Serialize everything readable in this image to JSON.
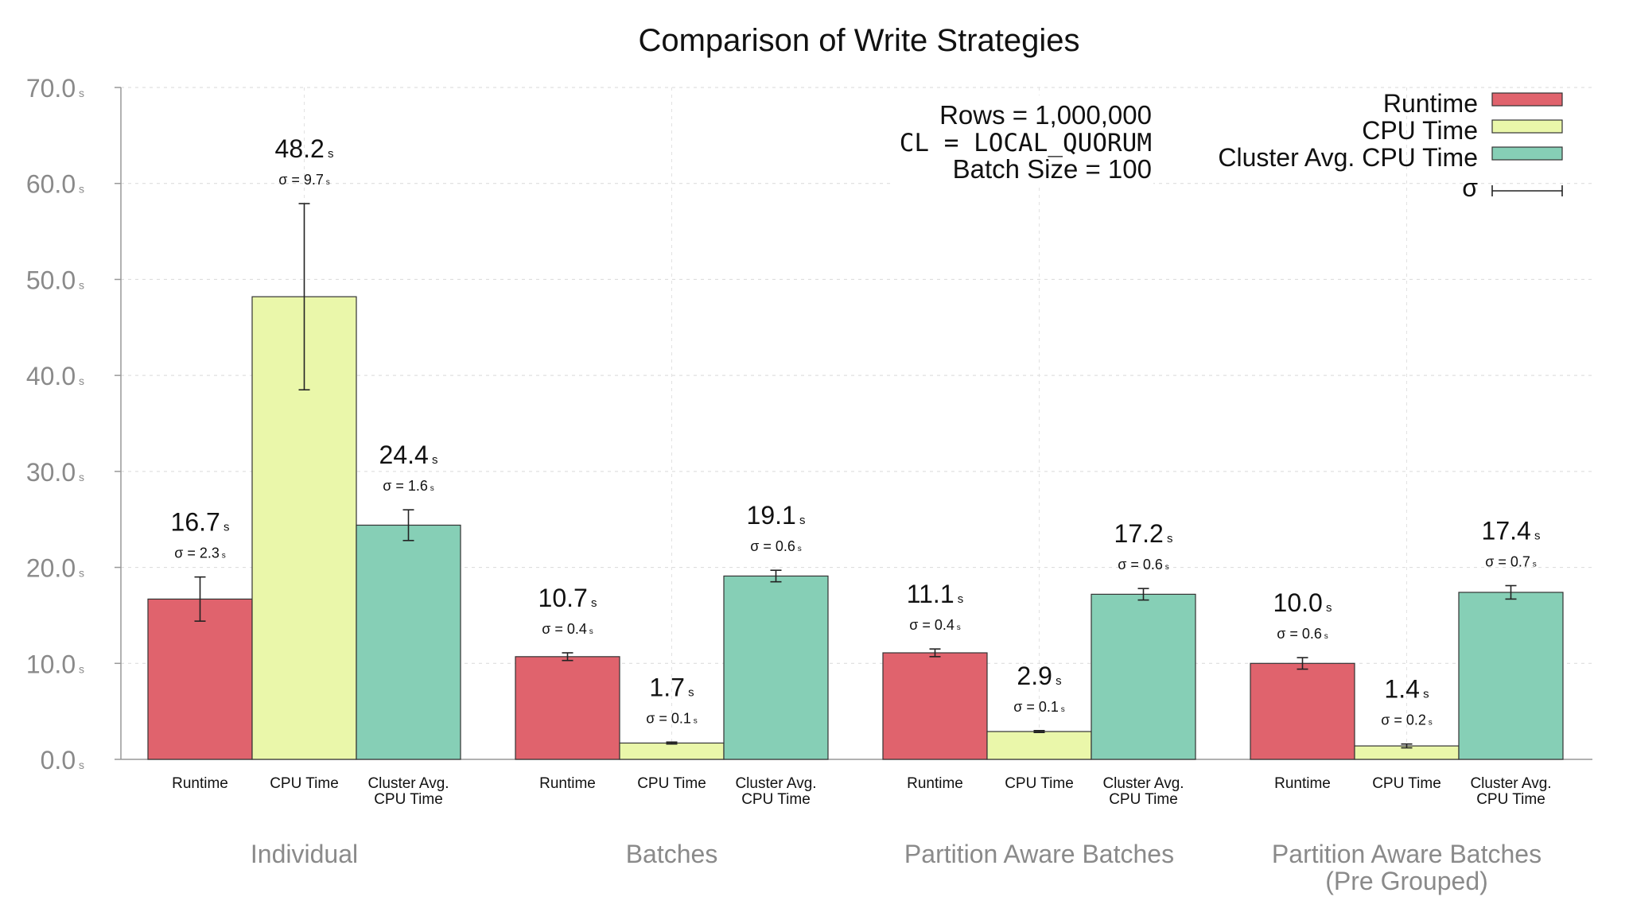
{
  "chart_data": {
    "type": "bar",
    "title": "Comparison of Write Strategies",
    "xlabel": "",
    "ylabel": "",
    "ylim": [
      0,
      70
    ],
    "yticks": [
      0,
      10,
      20,
      30,
      40,
      50,
      60,
      70
    ],
    "ytick_labels": [
      "0.0",
      "10.0",
      "20.0",
      "30.0",
      "40.0",
      "50.0",
      "60.0",
      "70.0"
    ],
    "y_unit": "s",
    "grid": true,
    "bar_labels": [
      "Runtime",
      "CPU Time",
      "Cluster Avg. CPU Time"
    ],
    "bar_label_lines": [
      [
        "Runtime"
      ],
      [
        "CPU Time"
      ],
      [
        "Cluster Avg.",
        "CPU Time"
      ]
    ],
    "categories": [
      {
        "label": [
          "Individual"
        ]
      },
      {
        "label": [
          "Batches"
        ]
      },
      {
        "label": [
          "Partition Aware Batches"
        ]
      },
      {
        "label": [
          "Partition Aware Batches",
          "(Pre Grouped)"
        ]
      }
    ],
    "series": [
      {
        "name": "Runtime",
        "color": "#e0636d",
        "values": [
          16.7,
          10.7,
          11.1,
          10.0
        ],
        "value_labels": [
          "16.7",
          "10.7",
          "11.1",
          "10.0"
        ],
        "sigma": [
          2.3,
          0.4,
          0.4,
          0.6
        ],
        "sigma_labels": [
          "2.3",
          "0.4",
          "0.4",
          "0.6"
        ]
      },
      {
        "name": "CPU Time",
        "color": "#eaf7aa",
        "values": [
          48.2,
          1.7,
          2.9,
          1.4
        ],
        "value_labels": [
          "48.2",
          "1.7",
          "2.9",
          "1.4"
        ],
        "sigma": [
          9.7,
          0.1,
          0.1,
          0.2
        ],
        "sigma_labels": [
          "9.7",
          "0.1",
          "0.1",
          "0.2"
        ]
      },
      {
        "name": "Cluster Avg. CPU Time",
        "color": "#86cfb6",
        "values": [
          24.4,
          19.1,
          17.2,
          17.4
        ],
        "value_labels": [
          "24.4",
          "19.1",
          "17.2",
          "17.4"
        ],
        "sigma": [
          1.6,
          0.6,
          0.6,
          0.7
        ],
        "sigma_labels": [
          "1.6",
          "0.6",
          "0.6",
          "0.7"
        ]
      }
    ],
    "sigma_symbol": "σ",
    "sigma_prefix": "σ = ",
    "annotation": [
      {
        "text": "Rows = 1,000,000",
        "mono": false
      },
      {
        "text": "CL = LOCAL_QUORUM",
        "mono": true
      },
      {
        "text": "Batch Size = 100",
        "mono": false
      }
    ],
    "legend": {
      "position": "top-right",
      "entries": [
        "Runtime",
        "CPU Time",
        "Cluster Avg. CPU Time",
        "σ"
      ]
    }
  }
}
